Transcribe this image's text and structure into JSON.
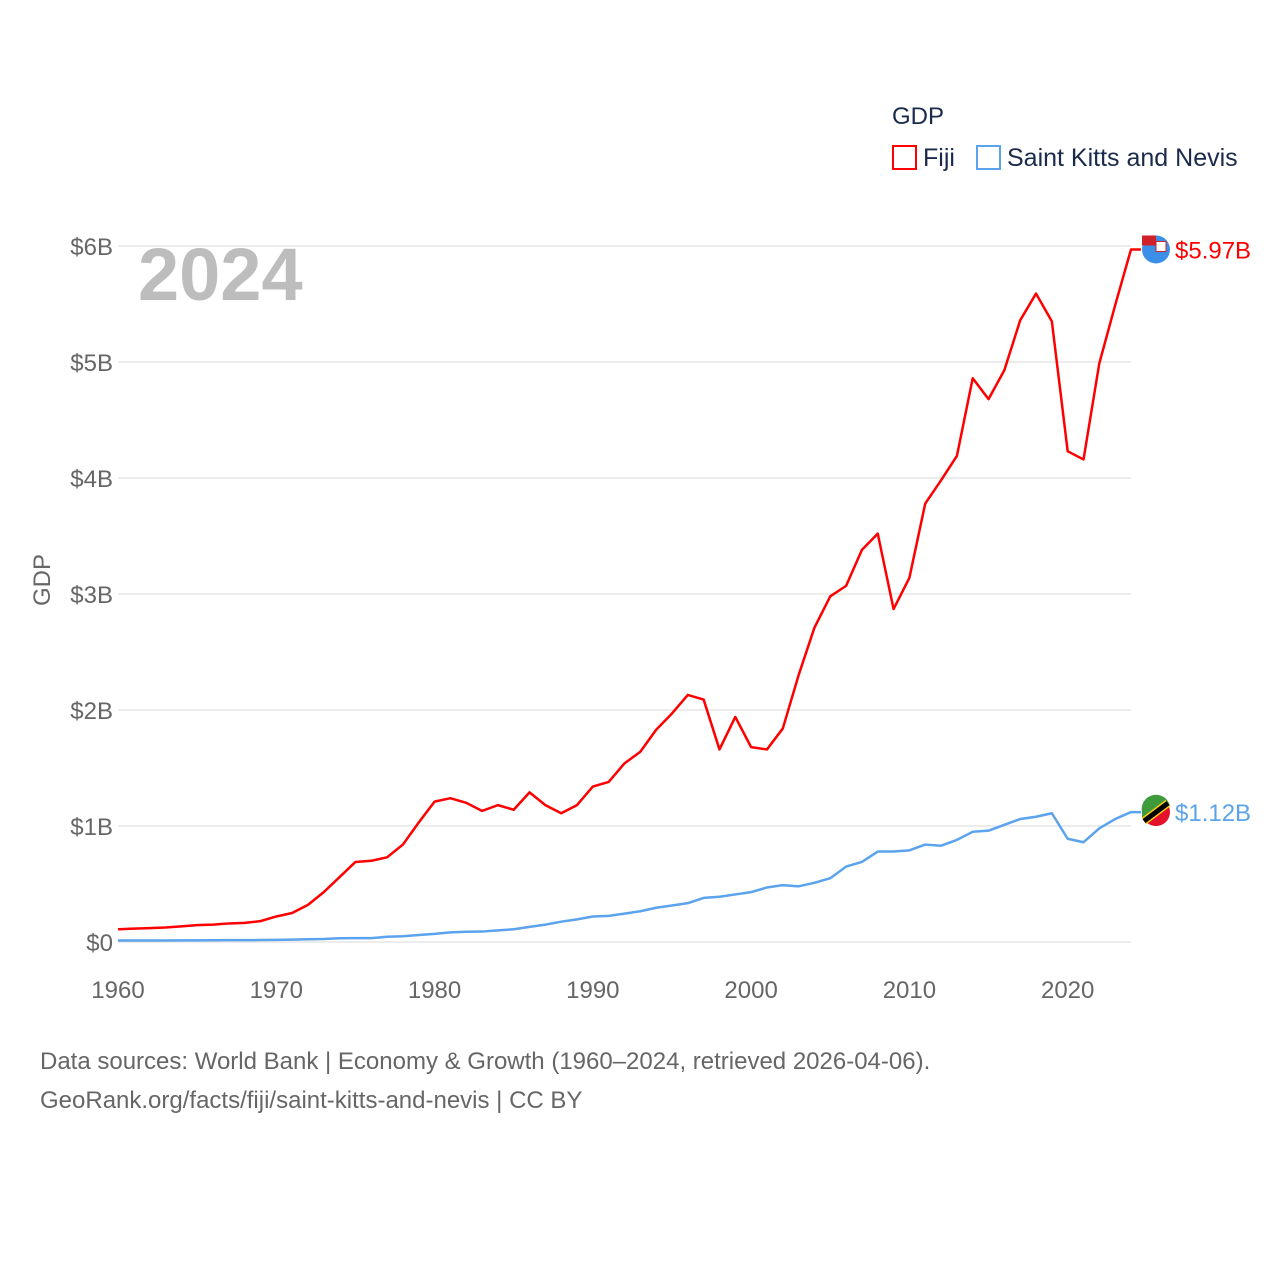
{
  "chart_data": {
    "type": "line",
    "title": "GDP",
    "ylabel": "GDP",
    "xlabel": "",
    "year_label": "2024",
    "xlim": [
      1960,
      2024
    ],
    "ylim": [
      0,
      6
    ],
    "x_ticks": [
      "1960",
      "1970",
      "1980",
      "1990",
      "2000",
      "2010",
      "2020"
    ],
    "y_ticks": [
      "$0",
      "$1B",
      "$2B",
      "$3B",
      "$4B",
      "$5B",
      "$6B"
    ],
    "grid": true,
    "legend_position": "top-right",
    "x": [
      1960,
      1961,
      1962,
      1963,
      1964,
      1965,
      1966,
      1967,
      1968,
      1969,
      1970,
      1971,
      1972,
      1973,
      1974,
      1975,
      1976,
      1977,
      1978,
      1979,
      1980,
      1981,
      1982,
      1983,
      1984,
      1985,
      1986,
      1987,
      1988,
      1989,
      1990,
      1991,
      1992,
      1993,
      1994,
      1995,
      1996,
      1997,
      1998,
      1999,
      2000,
      2001,
      2002,
      2003,
      2004,
      2005,
      2006,
      2007,
      2008,
      2009,
      2010,
      2011,
      2012,
      2013,
      2014,
      2015,
      2016,
      2017,
      2018,
      2019,
      2020,
      2021,
      2022,
      2023,
      2024
    ],
    "series": [
      {
        "name": "Fiji",
        "color": "#ff0000",
        "end_label": "$5.97B",
        "values": [
          0.11,
          0.115,
          0.12,
          0.125,
          0.135,
          0.145,
          0.15,
          0.16,
          0.165,
          0.18,
          0.22,
          0.25,
          0.32,
          0.43,
          0.56,
          0.69,
          0.7,
          0.73,
          0.84,
          1.03,
          1.21,
          1.24,
          1.2,
          1.13,
          1.18,
          1.14,
          1.29,
          1.18,
          1.11,
          1.18,
          1.34,
          1.38,
          1.54,
          1.64,
          1.83,
          1.97,
          2.13,
          2.09,
          1.66,
          1.94,
          1.68,
          1.66,
          1.84,
          2.3,
          2.71,
          2.98,
          3.07,
          3.38,
          3.52,
          2.87,
          3.14,
          3.78,
          3.98,
          4.19,
          4.86,
          4.68,
          4.93,
          5.36,
          5.59,
          5.35,
          4.23,
          4.16,
          4.99,
          5.49,
          5.97
        ]
      },
      {
        "name": "Saint Kitts and Nevis",
        "color": "#5ba3ec",
        "end_label": "$1.12B",
        "values": [
          0.013,
          0.013,
          0.013,
          0.013,
          0.014,
          0.014,
          0.015,
          0.016,
          0.016,
          0.017,
          0.018,
          0.02,
          0.024,
          0.026,
          0.032,
          0.033,
          0.033,
          0.045,
          0.05,
          0.06,
          0.07,
          0.083,
          0.088,
          0.09,
          0.1,
          0.11,
          0.13,
          0.15,
          0.175,
          0.195,
          0.22,
          0.225,
          0.245,
          0.265,
          0.295,
          0.315,
          0.335,
          0.38,
          0.39,
          0.41,
          0.43,
          0.47,
          0.49,
          0.48,
          0.51,
          0.55,
          0.65,
          0.69,
          0.78,
          0.78,
          0.79,
          0.84,
          0.83,
          0.88,
          0.95,
          0.96,
          1.01,
          1.06,
          1.08,
          1.11,
          0.89,
          0.86,
          0.98,
          1.06,
          1.12
        ]
      }
    ]
  },
  "footer": {
    "line1": "Data sources: World Bank | Economy & Growth (1960–2024, retrieved 2026-04-06).",
    "line2": "GeoRank.org/facts/fiji/saint-kitts-and-nevis | CC BY"
  }
}
